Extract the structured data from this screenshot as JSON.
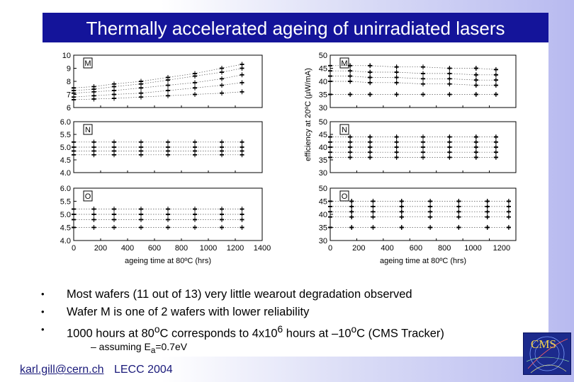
{
  "slide": {
    "title": "Thermally accelerated ageing of unirradiated lasers",
    "bullets": [
      "Most wafers (11 out of 13) very little wearout degradation observed",
      "Wafer M is one of 2 wafers with lower reliability"
    ],
    "bullet3": {
      "pre": "1000 hours at 80",
      "sup1": "o",
      "mid": "C corresponds to 4x10",
      "sup2": "6",
      "post": " hours at –10",
      "sup3": "o",
      "end": "C (CMS Tracker)"
    },
    "sub_bullet": {
      "pre": "–  assuming E",
      "sub": "a",
      "post": "=0.7eV"
    },
    "footer": {
      "email": "karl.gill@cern.ch",
      "conference": "LECC 2004"
    },
    "logo_text": "CMS",
    "colors": {
      "title_bar": "#14149a",
      "title_text": "#ffffff",
      "plot_ink": "#000000"
    }
  },
  "chart_data": [
    {
      "type": "scatter",
      "panel": "left-top",
      "label": "M",
      "xlim": [
        0,
        1400
      ],
      "ylim": [
        6,
        10
      ],
      "yticks": [
        "6",
        "7",
        "8",
        "9",
        "10"
      ],
      "x": [
        0,
        150,
        300,
        500,
        700,
        900,
        1100,
        1250
      ],
      "series": [
        {
          "values": [
            7.5,
            7.6,
            7.8,
            8.0,
            8.3,
            8.6,
            9.0,
            9.3
          ]
        },
        {
          "values": [
            7.3,
            7.4,
            7.6,
            7.8,
            8.1,
            8.4,
            8.7,
            9.0
          ]
        },
        {
          "values": [
            7.1,
            7.2,
            7.3,
            7.5,
            7.7,
            7.9,
            8.2,
            8.5
          ]
        },
        {
          "values": [
            6.8,
            6.9,
            7.0,
            7.1,
            7.3,
            7.5,
            7.7,
            7.9
          ]
        },
        {
          "values": [
            6.6,
            6.65,
            6.7,
            6.8,
            6.9,
            7.0,
            7.1,
            7.2
          ]
        }
      ]
    },
    {
      "type": "scatter",
      "panel": "left-middle",
      "label": "N",
      "xlim": [
        0,
        1400
      ],
      "ylim": [
        4.0,
        6.0
      ],
      "yticks": [
        "4.0",
        "4.5",
        "5.0",
        "5.5",
        "6.0"
      ],
      "x": [
        0,
        150,
        300,
        500,
        700,
        900,
        1100,
        1250
      ],
      "series": [
        {
          "values": [
            5.2,
            5.2,
            5.2,
            5.2,
            5.2,
            5.2,
            5.2,
            5.2
          ]
        },
        {
          "values": [
            5.0,
            5.0,
            5.0,
            5.0,
            5.0,
            5.0,
            5.0,
            5.0
          ]
        },
        {
          "values": [
            4.85,
            4.85,
            4.85,
            4.85,
            4.85,
            4.85,
            4.85,
            4.85
          ]
        },
        {
          "values": [
            4.7,
            4.7,
            4.7,
            4.7,
            4.7,
            4.7,
            4.7,
            4.7
          ]
        }
      ]
    },
    {
      "type": "scatter",
      "panel": "left-bottom",
      "label": "O",
      "xlim": [
        0,
        1400
      ],
      "ylim": [
        4.0,
        6.0
      ],
      "yticks": [
        "4.0",
        "4.5",
        "5.0",
        "5.5",
        "6.0"
      ],
      "xticks": [
        "0",
        "200",
        "400",
        "600",
        "800",
        "1000",
        "1200",
        "1400"
      ],
      "xlabel": "ageing time at 80ºC (hrs)",
      "x": [
        0,
        150,
        300,
        500,
        700,
        900,
        1100,
        1250
      ],
      "series": [
        {
          "values": [
            5.2,
            5.2,
            5.2,
            5.2,
            5.2,
            5.2,
            5.2,
            5.2
          ]
        },
        {
          "values": [
            5.0,
            5.0,
            5.0,
            5.0,
            5.0,
            5.0,
            5.0,
            5.0
          ]
        },
        {
          "values": [
            4.8,
            4.8,
            4.8,
            4.8,
            4.8,
            4.8,
            4.8,
            4.8
          ]
        },
        {
          "values": [
            4.5,
            4.5,
            4.5,
            4.5,
            4.5,
            4.5,
            4.5,
            4.5
          ]
        }
      ]
    },
    {
      "type": "scatter",
      "panel": "right-top",
      "label": "M",
      "xlim": [
        0,
        1400
      ],
      "ylim": [
        30,
        50
      ],
      "yticks": [
        "30",
        "35",
        "40",
        "45",
        "50"
      ],
      "ylabel": "efficiency at 20ºC (µW/mA)",
      "x": [
        0,
        150,
        300,
        500,
        700,
        900,
        1100,
        1250
      ],
      "series": [
        {
          "values": [
            46,
            46,
            46,
            45.5,
            45.5,
            45,
            45,
            44.5
          ]
        },
        {
          "values": [
            44,
            44,
            43.5,
            43.5,
            43,
            43,
            42.5,
            42.5
          ]
        },
        {
          "values": [
            42,
            42,
            41.5,
            41.5,
            41,
            41,
            40.5,
            40.5
          ]
        },
        {
          "values": [
            40,
            40,
            39.5,
            39.5,
            39,
            39,
            38.5,
            38.5
          ]
        },
        {
          "values": [
            35,
            35,
            35,
            35,
            35,
            35,
            35,
            35
          ]
        }
      ]
    },
    {
      "type": "scatter",
      "panel": "right-middle",
      "label": "N",
      "xlim": [
        0,
        1400
      ],
      "ylim": [
        30,
        50
      ],
      "yticks": [
        "30",
        "35",
        "40",
        "45",
        "50"
      ],
      "x": [
        0,
        150,
        300,
        500,
        700,
        900,
        1100,
        1250
      ],
      "series": [
        {
          "values": [
            44,
            44,
            44,
            44,
            44,
            44,
            44,
            44
          ]
        },
        {
          "values": [
            42,
            42,
            42,
            42,
            42,
            42,
            42,
            42
          ]
        },
        {
          "values": [
            40,
            40,
            40,
            40,
            40,
            40,
            40,
            40
          ]
        },
        {
          "values": [
            38,
            38,
            38,
            38,
            38,
            38,
            38,
            38
          ]
        },
        {
          "values": [
            36,
            36,
            36,
            36,
            36,
            36,
            36,
            36
          ]
        }
      ]
    },
    {
      "type": "scatter",
      "panel": "right-bottom",
      "label": "O",
      "xlim": [
        0,
        1300
      ],
      "ylim": [
        30,
        50
      ],
      "yticks": [
        "30",
        "35",
        "40",
        "45",
        "50"
      ],
      "xticks": [
        "0",
        "200",
        "400",
        "600",
        "800",
        "1000",
        "1200"
      ],
      "xlabel": "ageing time at 80ºC (hrs)",
      "x": [
        0,
        150,
        300,
        500,
        700,
        900,
        1100,
        1250
      ],
      "series": [
        {
          "values": [
            45,
            45,
            45,
            45,
            45,
            45,
            45,
            45
          ]
        },
        {
          "values": [
            43,
            43,
            43,
            43,
            43,
            43,
            43,
            43
          ]
        },
        {
          "values": [
            41,
            41,
            41,
            41,
            41,
            41,
            41,
            41
          ]
        },
        {
          "values": [
            39,
            39,
            39,
            39,
            39,
            39,
            39,
            39
          ]
        },
        {
          "values": [
            35,
            35,
            35,
            35,
            35,
            35,
            35,
            35
          ]
        }
      ]
    }
  ]
}
